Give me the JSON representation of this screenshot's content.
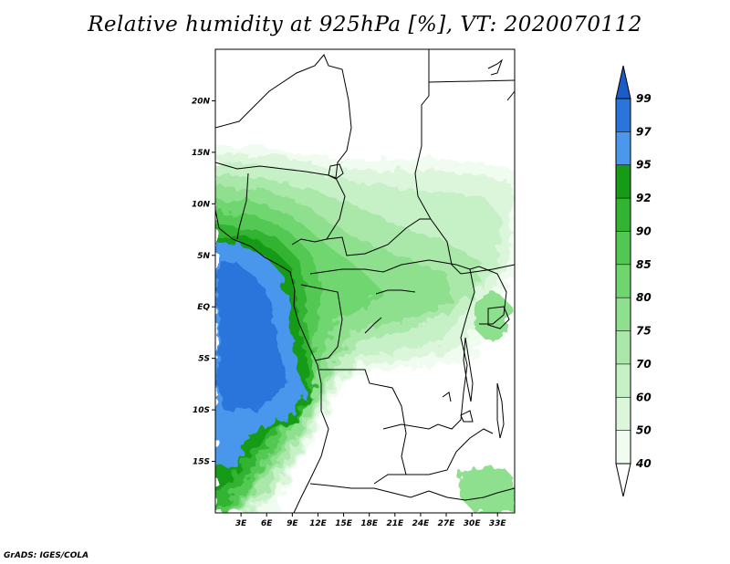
{
  "title": "Relative humidity at 925hPa [%], VT: 2020070112",
  "credit": "GrADS: IGES/COLA",
  "map": {
    "lon_range": [
      0,
      35
    ],
    "lat_range": [
      -20,
      25
    ],
    "lat_ticks": [
      {
        "value": 20,
        "label": "20N"
      },
      {
        "value": 15,
        "label": "15N"
      },
      {
        "value": 10,
        "label": "10N"
      },
      {
        "value": 5,
        "label": "5N"
      },
      {
        "value": 0,
        "label": "EQ"
      },
      {
        "value": -5,
        "label": "5S"
      },
      {
        "value": -10,
        "label": "10S"
      },
      {
        "value": -15,
        "label": "15S"
      }
    ],
    "lon_ticks": [
      {
        "value": 3,
        "label": "3E"
      },
      {
        "value": 6,
        "label": "6E"
      },
      {
        "value": 9,
        "label": "9E"
      },
      {
        "value": 12,
        "label": "12E"
      },
      {
        "value": 15,
        "label": "15E"
      },
      {
        "value": 18,
        "label": "18E"
      },
      {
        "value": 21,
        "label": "21E"
      },
      {
        "value": 24,
        "label": "24E"
      },
      {
        "value": 27,
        "label": "27E"
      },
      {
        "value": 30,
        "label": "30E"
      },
      {
        "value": 33,
        "label": "33E"
      }
    ]
  },
  "colorbar": {
    "levels": [
      {
        "label": "40",
        "color": "#f0fcf0"
      },
      {
        "label": "50",
        "color": "#dcf6dc"
      },
      {
        "label": "60",
        "color": "#c6f0c6"
      },
      {
        "label": "70",
        "color": "#aae8aa"
      },
      {
        "label": "75",
        "color": "#8edf8e"
      },
      {
        "label": "80",
        "color": "#6fd66f"
      },
      {
        "label": "85",
        "color": "#52c852"
      },
      {
        "label": "90",
        "color": "#32b332"
      },
      {
        "label": "92",
        "color": "#169b16"
      },
      {
        "label": "95",
        "color": "#4a97ec"
      },
      {
        "label": "97",
        "color": "#2a74dc"
      },
      {
        "label": "99",
        "color": null
      }
    ],
    "bottom_color": "#ffffff",
    "top_color": "#1a5cc8"
  },
  "chart_data": {
    "type": "heatmap",
    "variable": "Relative humidity at 925hPa",
    "units": "%",
    "valid_time": "2020070112",
    "approx_regions": [
      {
        "lon": [
          0,
          8
        ],
        "lat": [
          -10,
          5
        ],
        "value": 96
      },
      {
        "lon": [
          0,
          5
        ],
        "lat": [
          -18,
          -10
        ],
        "value": 90
      },
      {
        "lon": [
          8,
          12
        ],
        "lat": [
          -8,
          5
        ],
        "value": 92
      },
      {
        "lon": [
          0,
          10
        ],
        "lat": [
          5,
          12
        ],
        "value": 88
      },
      {
        "lon": [
          10,
          25
        ],
        "lat": [
          0,
          10
        ],
        "value": 78
      },
      {
        "lon": [
          25,
          35
        ],
        "lat": [
          2,
          13
        ],
        "value": 70
      },
      {
        "lon": [
          0,
          35
        ],
        "lat": [
          12,
          15
        ],
        "value": 55
      },
      {
        "lon": [
          15,
          22
        ],
        "lat": [
          -8,
          0
        ],
        "value": 72
      },
      {
        "lon": [
          22,
          35
        ],
        "lat": [
          -20,
          -5
        ],
        "value": 40
      }
    ]
  }
}
